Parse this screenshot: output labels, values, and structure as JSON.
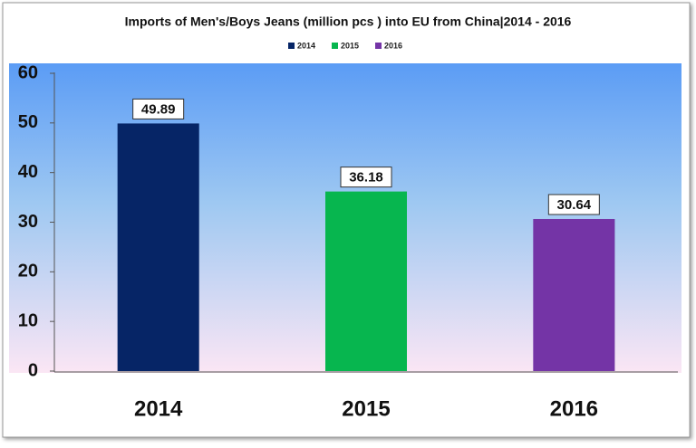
{
  "chart_data": {
    "type": "bar",
    "title": "Imports of Men's/Boys Jeans (million pcs ) into EU from China|2014 - 2016",
    "categories": [
      "2014",
      "2015",
      "2016"
    ],
    "values": [
      49.89,
      36.18,
      30.64
    ],
    "colors": [
      "#062566",
      "#07b64f",
      "#7434a6"
    ],
    "ylim": [
      0,
      60
    ],
    "yticks": [
      0,
      10,
      20,
      30,
      40,
      50,
      60
    ],
    "legend": "top"
  }
}
